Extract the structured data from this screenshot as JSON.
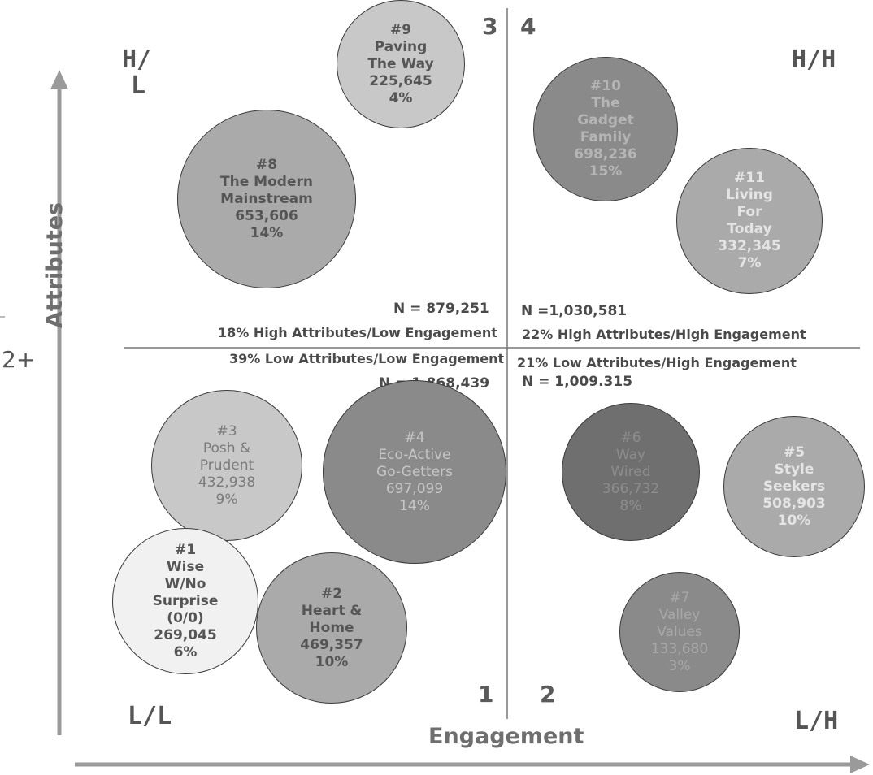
{
  "colors": {
    "arrow": "#9a9a9a",
    "divider": "#777777",
    "text": "#4a4a4a",
    "bubble_white": "#f1f1f1",
    "bubble_light": "#c8c8c8",
    "bubble_mid": "#aaaaaa",
    "bubble_dark": "#8a8a8a",
    "bubble_darkest": "#6f6f6f"
  },
  "axes": {
    "x_label": "Engagement",
    "y_label": "Attributes",
    "y_tick": "2+"
  },
  "corners": {
    "top_left_line1": "H/",
    "top_left_line2": "L",
    "top_right": "H/H",
    "bottom_left": "L/L",
    "bottom_right": "L/H"
  },
  "quadrant_numbers": {
    "q1": "1",
    "q2": "2",
    "q3": "3",
    "q4": "4"
  },
  "quadrant_stats": {
    "hl_n": "N = 879,251",
    "hl_label": "18% High Attributes/Low Engagement",
    "hh_n": "N =1,030,581",
    "hh_label": "22% High Attributes/High Engagement",
    "ll_label": "39% Low Attributes/Low Engagement",
    "ll_n": "N = 1,868,439",
    "lh_label": "21% Low Attributes/High Engagement",
    "lh_n": "N = 1,009.315"
  },
  "segments": [
    {
      "id": "seg-9",
      "lines": [
        "#9",
        "Paving",
        "The Way",
        "225,645",
        "4%"
      ],
      "shade": "light",
      "text_color": "#555555"
    },
    {
      "id": "seg-8",
      "lines": [
        "#8",
        "The Modern",
        "Mainstream",
        "653,606",
        "14%"
      ],
      "shade": "mid",
      "text_color": "#555555"
    },
    {
      "id": "seg-10",
      "lines": [
        "#10",
        "The",
        "Gadget",
        "Family",
        "698,236",
        "15%"
      ],
      "shade": "dark",
      "text_color": "#b5b5b5"
    },
    {
      "id": "seg-11",
      "lines": [
        "#11",
        "Living",
        "For",
        "Today",
        "332,345",
        "7%"
      ],
      "shade": "mid",
      "text_color": "#e4e4e4"
    },
    {
      "id": "seg-3",
      "lines": [
        "#3",
        "Posh &",
        "Prudent",
        "432,938",
        "9%"
      ],
      "shade": "light",
      "text_color": "#7a7a7a"
    },
    {
      "id": "seg-4",
      "lines": [
        "#4",
        "Eco-Active",
        "Go-Getters",
        "697,099",
        "14%"
      ],
      "shade": "dark",
      "text_color": "#c6c6c6"
    },
    {
      "id": "seg-6",
      "lines": [
        "#6",
        "Way",
        "Wired",
        "366,732",
        "8%"
      ],
      "shade": "darkest",
      "text_color": "#8d8d8d"
    },
    {
      "id": "seg-5",
      "lines": [
        "#5",
        "Style",
        "Seekers",
        "508,903",
        "10%"
      ],
      "shade": "mid",
      "text_color": "#e4e4e4"
    },
    {
      "id": "seg-1",
      "lines": [
        "#1",
        "Wise",
        "W/No",
        "Surprise",
        "(0/0)",
        "269,045",
        "6%"
      ],
      "shade": "white",
      "text_color": "#555555"
    },
    {
      "id": "seg-2",
      "lines": [
        "#2",
        "Heart &",
        "Home",
        "469,357",
        "10%"
      ],
      "shade": "mid",
      "text_color": "#555555"
    },
    {
      "id": "seg-7",
      "lines": [
        "#7",
        "Valley",
        "Values",
        "133,680",
        "3%"
      ],
      "shade": "dark",
      "text_color": "#a8a8a8"
    }
  ]
}
